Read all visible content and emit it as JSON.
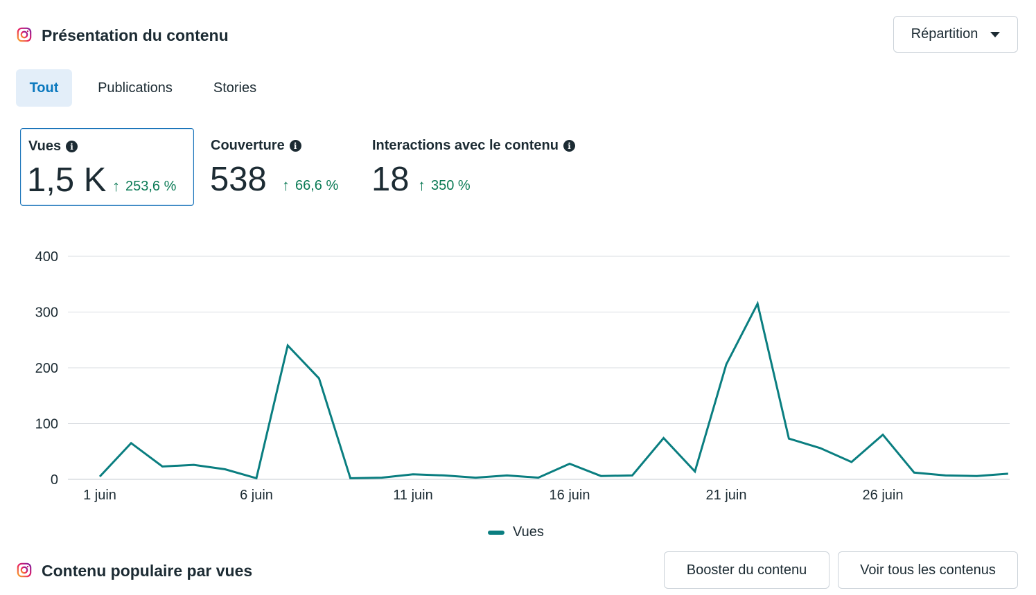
{
  "header": {
    "title": "Présentation du contenu",
    "dropdown_label": "Répartition"
  },
  "tabs": [
    {
      "label": "Tout",
      "active": true
    },
    {
      "label": "Publications",
      "active": false
    },
    {
      "label": "Stories",
      "active": false
    }
  ],
  "metrics": [
    {
      "label": "Vues",
      "value": "1,5 K",
      "change": "253,6 %",
      "selected": true
    },
    {
      "label": "Couverture",
      "value": "538",
      "change": "66,6 %",
      "selected": false
    },
    {
      "label": "Interactions avec le contenu",
      "value": "18",
      "change": "350 %",
      "selected": false
    }
  ],
  "colors": {
    "line": "#0a7e80",
    "accent": "#0a78be",
    "positive": "#0a7a55",
    "grid": "#dadde1"
  },
  "chart_data": {
    "type": "line",
    "x": [
      "1 juin",
      "2 juin",
      "3 juin",
      "4 juin",
      "5 juin",
      "6 juin",
      "7 juin",
      "8 juin",
      "9 juin",
      "10 juin",
      "11 juin",
      "12 juin",
      "13 juin",
      "14 juin",
      "15 juin",
      "16 juin",
      "17 juin",
      "18 juin",
      "19 juin",
      "20 juin",
      "21 juin",
      "22 juin",
      "23 juin",
      "24 juin",
      "25 juin",
      "26 juin",
      "27 juin",
      "28 juin",
      "29 juin",
      "30 juin"
    ],
    "x_tick_labels": [
      "1 juin",
      "6 juin",
      "11 juin",
      "16 juin",
      "21 juin",
      "26 juin"
    ],
    "series": [
      {
        "name": "Vues",
        "values": [
          5,
          65,
          23,
          26,
          18,
          2,
          240,
          181,
          2,
          3,
          9,
          7,
          3,
          7,
          3,
          28,
          6,
          7,
          74,
          14,
          206,
          315,
          73,
          56,
          31,
          80,
          12,
          7,
          6,
          10
        ]
      }
    ],
    "ylim": [
      0,
      400
    ],
    "y_ticks": [
      0,
      100,
      200,
      300,
      400
    ],
    "grid": true,
    "legend": "bottom-center"
  },
  "footer": {
    "title": "Contenu populaire par vues",
    "boost_label": "Booster du contenu",
    "view_all_label": "Voir tous les contenus"
  }
}
